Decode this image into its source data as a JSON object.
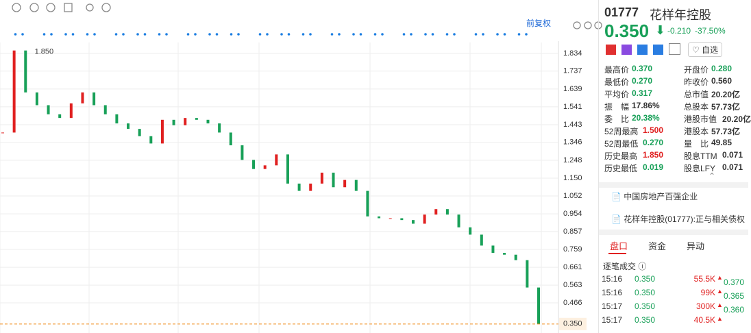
{
  "toolbar": {
    "restore": "前复权"
  },
  "chart_data": {
    "type": "candlestick",
    "values": [
      1.4,
      1.85,
      1.62,
      1.55,
      1.5,
      1.48,
      1.56,
      1.62,
      1.55,
      1.5,
      1.45,
      1.42,
      1.38,
      1.34,
      1.47,
      1.44,
      1.48,
      1.47,
      1.45,
      1.4,
      1.33,
      1.25,
      1.2,
      1.22,
      1.28,
      1.12,
      1.08,
      1.12,
      1.18,
      1.1,
      1.14,
      1.08,
      0.94,
      0.93,
      0.93,
      0.92,
      0.9,
      0.95,
      0.98,
      0.95,
      0.88,
      0.84,
      0.78,
      0.74,
      0.73,
      0.7,
      0.55,
      0.35
    ],
    "up_color": "#e02020",
    "down_color": "#18a058",
    "ylim": [
      0.32,
      1.9
    ],
    "yticks": [
      1.834,
      1.737,
      1.639,
      1.541,
      1.443,
      1.346,
      1.248,
      {
        "value": 1.15,
        "label": "1.150"
      },
      1.052,
      0.954,
      0.857,
      0.759,
      0.661,
      0.563,
      0.466
    ],
    "high_label": {
      "value": 1.85,
      "label": "1.850"
    },
    "last": {
      "value": 0.35,
      "label": "0.350"
    }
  },
  "quote": {
    "code": "01777",
    "name": "花样年控股",
    "price": "0.350",
    "change": "-0.210",
    "change_pct": "-37.50%",
    "watch": "自选"
  },
  "stats": [
    {
      "label": "最高价",
      "value": "0.370",
      "color": "#18a058"
    },
    {
      "label": "开盘价",
      "value": "0.280",
      "color": "#18a058"
    },
    {
      "label": "最低价",
      "value": "0.270",
      "color": "#18a058"
    },
    {
      "label": "昨收价",
      "value": "0.560",
      "color": "#333333"
    },
    {
      "label": "平均价",
      "value": "0.317",
      "color": "#18a058"
    },
    {
      "label": "总市值",
      "value": "20.20亿",
      "color": "#333333"
    },
    {
      "label": "振　幅",
      "value": "17.86%",
      "color": "#333333"
    },
    {
      "label": "总股本",
      "value": "57.73亿",
      "color": "#333333"
    },
    {
      "label": "委　比",
      "value": "20.38%",
      "color": "#18a058"
    },
    {
      "label": "港股市值",
      "value": "20.20亿",
      "color": "#333333"
    },
    {
      "label": "52周最高",
      "value": "1.500",
      "color": "#e02020"
    },
    {
      "label": "港股本",
      "value": "57.73亿",
      "color": "#333333"
    },
    {
      "label": "52周最低",
      "value": "0.270",
      "color": "#18a058"
    },
    {
      "label": "量　比",
      "value": "49.85",
      "color": "#333333"
    },
    {
      "label": "历史最高",
      "value": "1.850",
      "color": "#e02020"
    },
    {
      "label": "股息TTM",
      "value": "0.071",
      "color": "#333333"
    },
    {
      "label": "历史最低",
      "value": "0.019",
      "color": "#18a058"
    },
    {
      "label": "股息LFY",
      "value": "0.071",
      "color": "#333333"
    }
  ],
  "news": [
    "中国房地产百强企业",
    "花样年控股(01777):正与相关债权"
  ],
  "tabs": [
    "盘口",
    "资金",
    "异动"
  ],
  "trades_title": "逐笔成交",
  "trades": [
    [
      "15:16",
      "0.350",
      "55.5K"
    ],
    [
      "15:16",
      "0.350",
      "99K"
    ],
    [
      "15:17",
      "0.350",
      "300K"
    ],
    [
      "15:17",
      "0.350",
      "40.5K"
    ]
  ],
  "side_prices": [
    "0.370",
    "0.365",
    "0.360"
  ]
}
